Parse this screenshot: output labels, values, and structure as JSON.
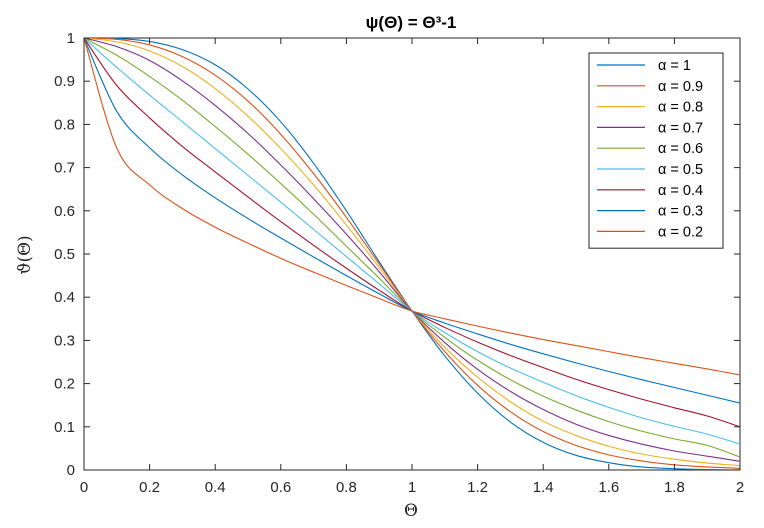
{
  "chart_data": {
    "type": "line",
    "title": "ψ(Θ) = Θ³-1",
    "xlabel": "Θ",
    "ylabel": "ϑ(Θ)",
    "xlim": [
      0,
      2
    ],
    "ylim": [
      0,
      1
    ],
    "xticks": [
      "0",
      "0.2",
      "0.4",
      "0.6",
      "0.8",
      "1",
      "1.2",
      "1.4",
      "1.6",
      "1.8",
      "2"
    ],
    "yticks": [
      "0",
      "0.1",
      "0.2",
      "0.3",
      "0.4",
      "0.5",
      "0.6",
      "0.7",
      "0.8",
      "0.9",
      "1"
    ],
    "grid": false,
    "legend_position": "top-right",
    "x": [
      0,
      0.1,
      0.2,
      0.3,
      0.4,
      0.5,
      0.6,
      0.7,
      0.8,
      0.9,
      1.0,
      1.1,
      1.2,
      1.3,
      1.4,
      1.5,
      1.6,
      1.7,
      1.8,
      1.9,
      2.0
    ],
    "series": [
      {
        "name": "α = 1",
        "color": "#0072BD",
        "values": [
          1,
          0.999,
          0.992,
          0.973,
          0.938,
          0.882,
          0.806,
          0.71,
          0.6,
          0.482,
          0.368,
          0.264,
          0.178,
          0.111,
          0.064,
          0.034,
          0.017,
          0.007,
          0.003,
          0.001,
          0.0003
        ]
      },
      {
        "name": "α = 0.9",
        "color": "#D95319",
        "values": [
          1,
          0.997,
          0.984,
          0.957,
          0.914,
          0.854,
          0.777,
          0.686,
          0.585,
          0.477,
          0.368,
          0.274,
          0.196,
          0.135,
          0.089,
          0.057,
          0.035,
          0.021,
          0.012,
          0.007,
          0.004
        ]
      },
      {
        "name": "α = 0.8",
        "color": "#EDB120",
        "values": [
          1,
          0.991,
          0.97,
          0.934,
          0.883,
          0.819,
          0.744,
          0.66,
          0.567,
          0.469,
          0.368,
          0.284,
          0.215,
          0.158,
          0.113,
          0.08,
          0.055,
          0.037,
          0.025,
          0.016,
          0.01
        ]
      },
      {
        "name": "α = 0.7",
        "color": "#7E2F8E",
        "values": [
          1,
          0.98,
          0.948,
          0.901,
          0.844,
          0.779,
          0.706,
          0.628,
          0.546,
          0.459,
          0.368,
          0.295,
          0.233,
          0.182,
          0.14,
          0.106,
          0.08,
          0.06,
          0.044,
          0.032,
          0.02
        ]
      },
      {
        "name": "α = 0.6",
        "color": "#77AC30",
        "values": [
          1,
          0.96,
          0.911,
          0.856,
          0.795,
          0.731,
          0.663,
          0.592,
          0.518,
          0.444,
          0.368,
          0.307,
          0.254,
          0.209,
          0.171,
          0.139,
          0.112,
          0.09,
          0.072,
          0.057,
          0.03
        ]
      },
      {
        "name": "α = 0.5",
        "color": "#4DBEEE",
        "values": [
          1,
          0.932,
          0.868,
          0.806,
          0.744,
          0.682,
          0.62,
          0.557,
          0.494,
          0.431,
          0.368,
          0.318,
          0.274,
          0.236,
          0.203,
          0.172,
          0.145,
          0.121,
          0.101,
          0.083,
          0.06
        ]
      },
      {
        "name": "α = 0.4",
        "color": "#A2142F",
        "values": [
          1,
          0.89,
          0.815,
          0.749,
          0.69,
          0.632,
          0.575,
          0.52,
          0.467,
          0.416,
          0.368,
          0.33,
          0.296,
          0.265,
          0.237,
          0.21,
          0.186,
          0.164,
          0.144,
          0.125,
          0.1
        ]
      },
      {
        "name": "α = 0.3",
        "color": "#0072BD",
        "values": [
          1,
          0.83,
          0.746,
          0.683,
          0.63,
          0.582,
          0.537,
          0.493,
          0.45,
          0.408,
          0.368,
          0.34,
          0.315,
          0.291,
          0.269,
          0.248,
          0.228,
          0.209,
          0.191,
          0.173,
          0.155
        ]
      },
      {
        "name": "α = 0.2",
        "color": "#D95319",
        "values": [
          1,
          0.745,
          0.66,
          0.605,
          0.562,
          0.525,
          0.49,
          0.458,
          0.427,
          0.397,
          0.368,
          0.35,
          0.333,
          0.317,
          0.302,
          0.288,
          0.274,
          0.26,
          0.247,
          0.234,
          0.22
        ]
      }
    ]
  }
}
